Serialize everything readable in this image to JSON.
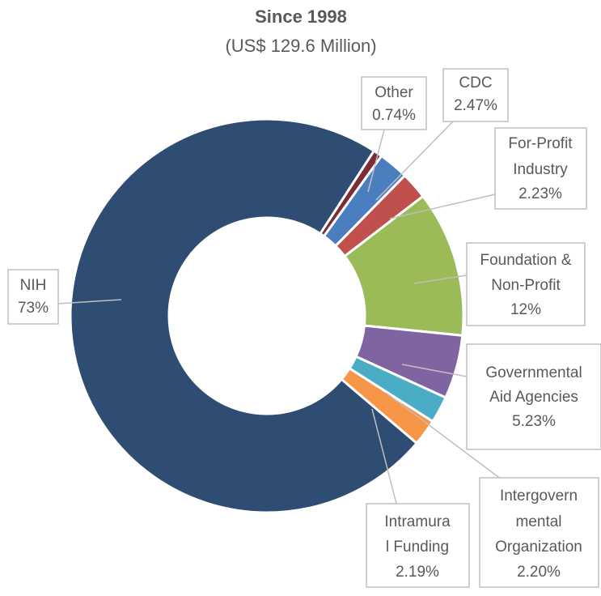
{
  "chart_data": {
    "type": "donut",
    "title": "Since 1998",
    "subtitle": "(US$ 129.6 Million)",
    "categories": [
      "Other",
      "CDC",
      "For-Profit Industry",
      "Foundation & Non-Profit",
      "Governmental Aid Agencies",
      "Intergovernmental Organization",
      "Intramural Funding",
      "NIH"
    ],
    "values": [
      0.74,
      2.47,
      2.23,
      12,
      5.23,
      2.2,
      2.19,
      73
    ],
    "value_labels": [
      "0.74%",
      "2.47%",
      "2.23%",
      "12%",
      "5.23%",
      "2.20%",
      "2.19%",
      "73%"
    ],
    "colors": [
      "#7b2c35",
      "#4a7ebf",
      "#c0504d",
      "#9bbb59",
      "#8064a2",
      "#4bacc6",
      "#f79646",
      "#2f4d72"
    ]
  }
}
